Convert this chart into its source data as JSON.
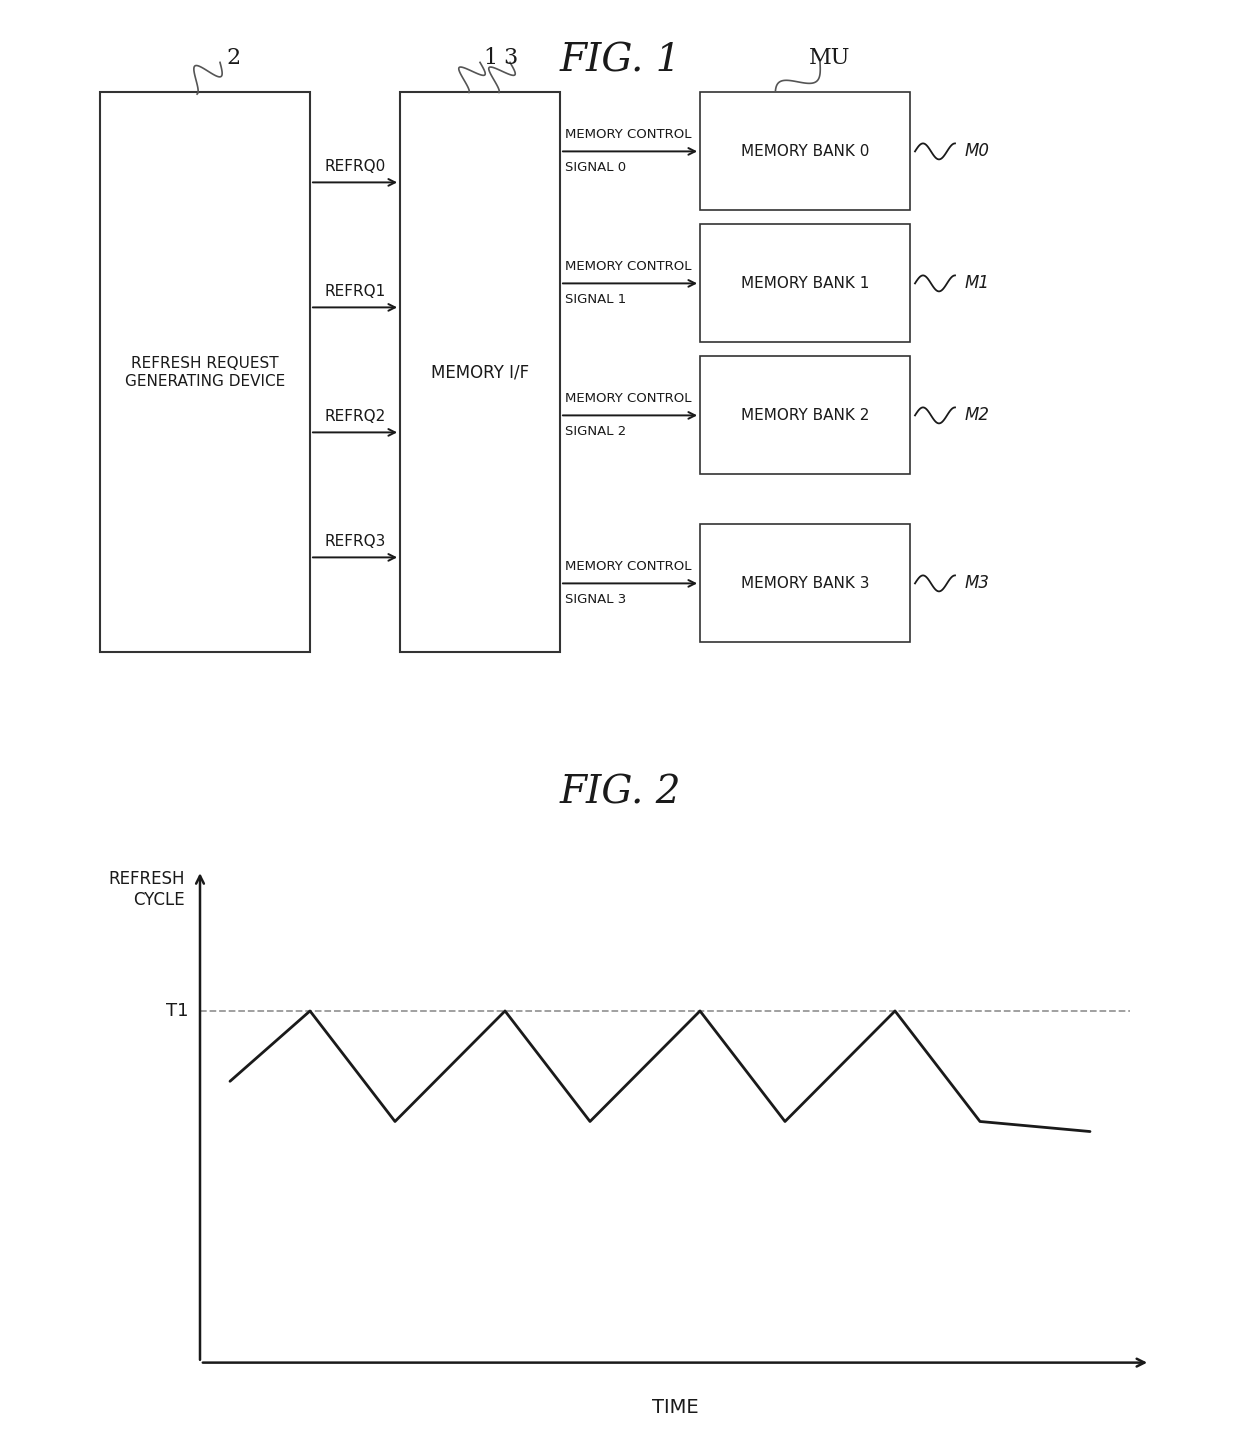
{
  "fig1_title": "FIG. 1",
  "fig2_title": "FIG. 2",
  "bg_color": "#ffffff",
  "line_color": "#1a1a1a",
  "box_edge": "#333333",
  "box_face": "#ffffff",
  "text_color": "#1a1a1a",
  "callout_color": "#555555",
  "dashed_color": "#999999",
  "device_label": "REFRESH REQUEST\nGENERATING DEVICE",
  "memif_label": "MEMORY I/F",
  "refrq_labels": [
    "REFRQ0",
    "REFRQ1",
    "REFRQ2",
    "REFRQ3"
  ],
  "signal_labels": [
    "MEMORY CONTROL\nSIGNAL 0",
    "MEMORY CONTROL\nSIGNAL 1",
    "MEMORY CONTROL\nSIGNAL 2",
    "MEMORY CONTROL\nSIGNAL 3"
  ],
  "bank_labels": [
    "MEMORY BANK 0",
    "MEMORY BANK 1",
    "MEMORY BANK 2",
    "MEMORY BANK 3"
  ],
  "bank_ids": [
    "M0",
    "M1",
    "M2",
    "M3"
  ],
  "num_labels": [
    "2",
    "1",
    "3"
  ],
  "mu_label": "MU",
  "ylabel_fig2": "REFRESH\nCYCLE",
  "xlabel_fig2": "TIME",
  "t1_label": "T1"
}
